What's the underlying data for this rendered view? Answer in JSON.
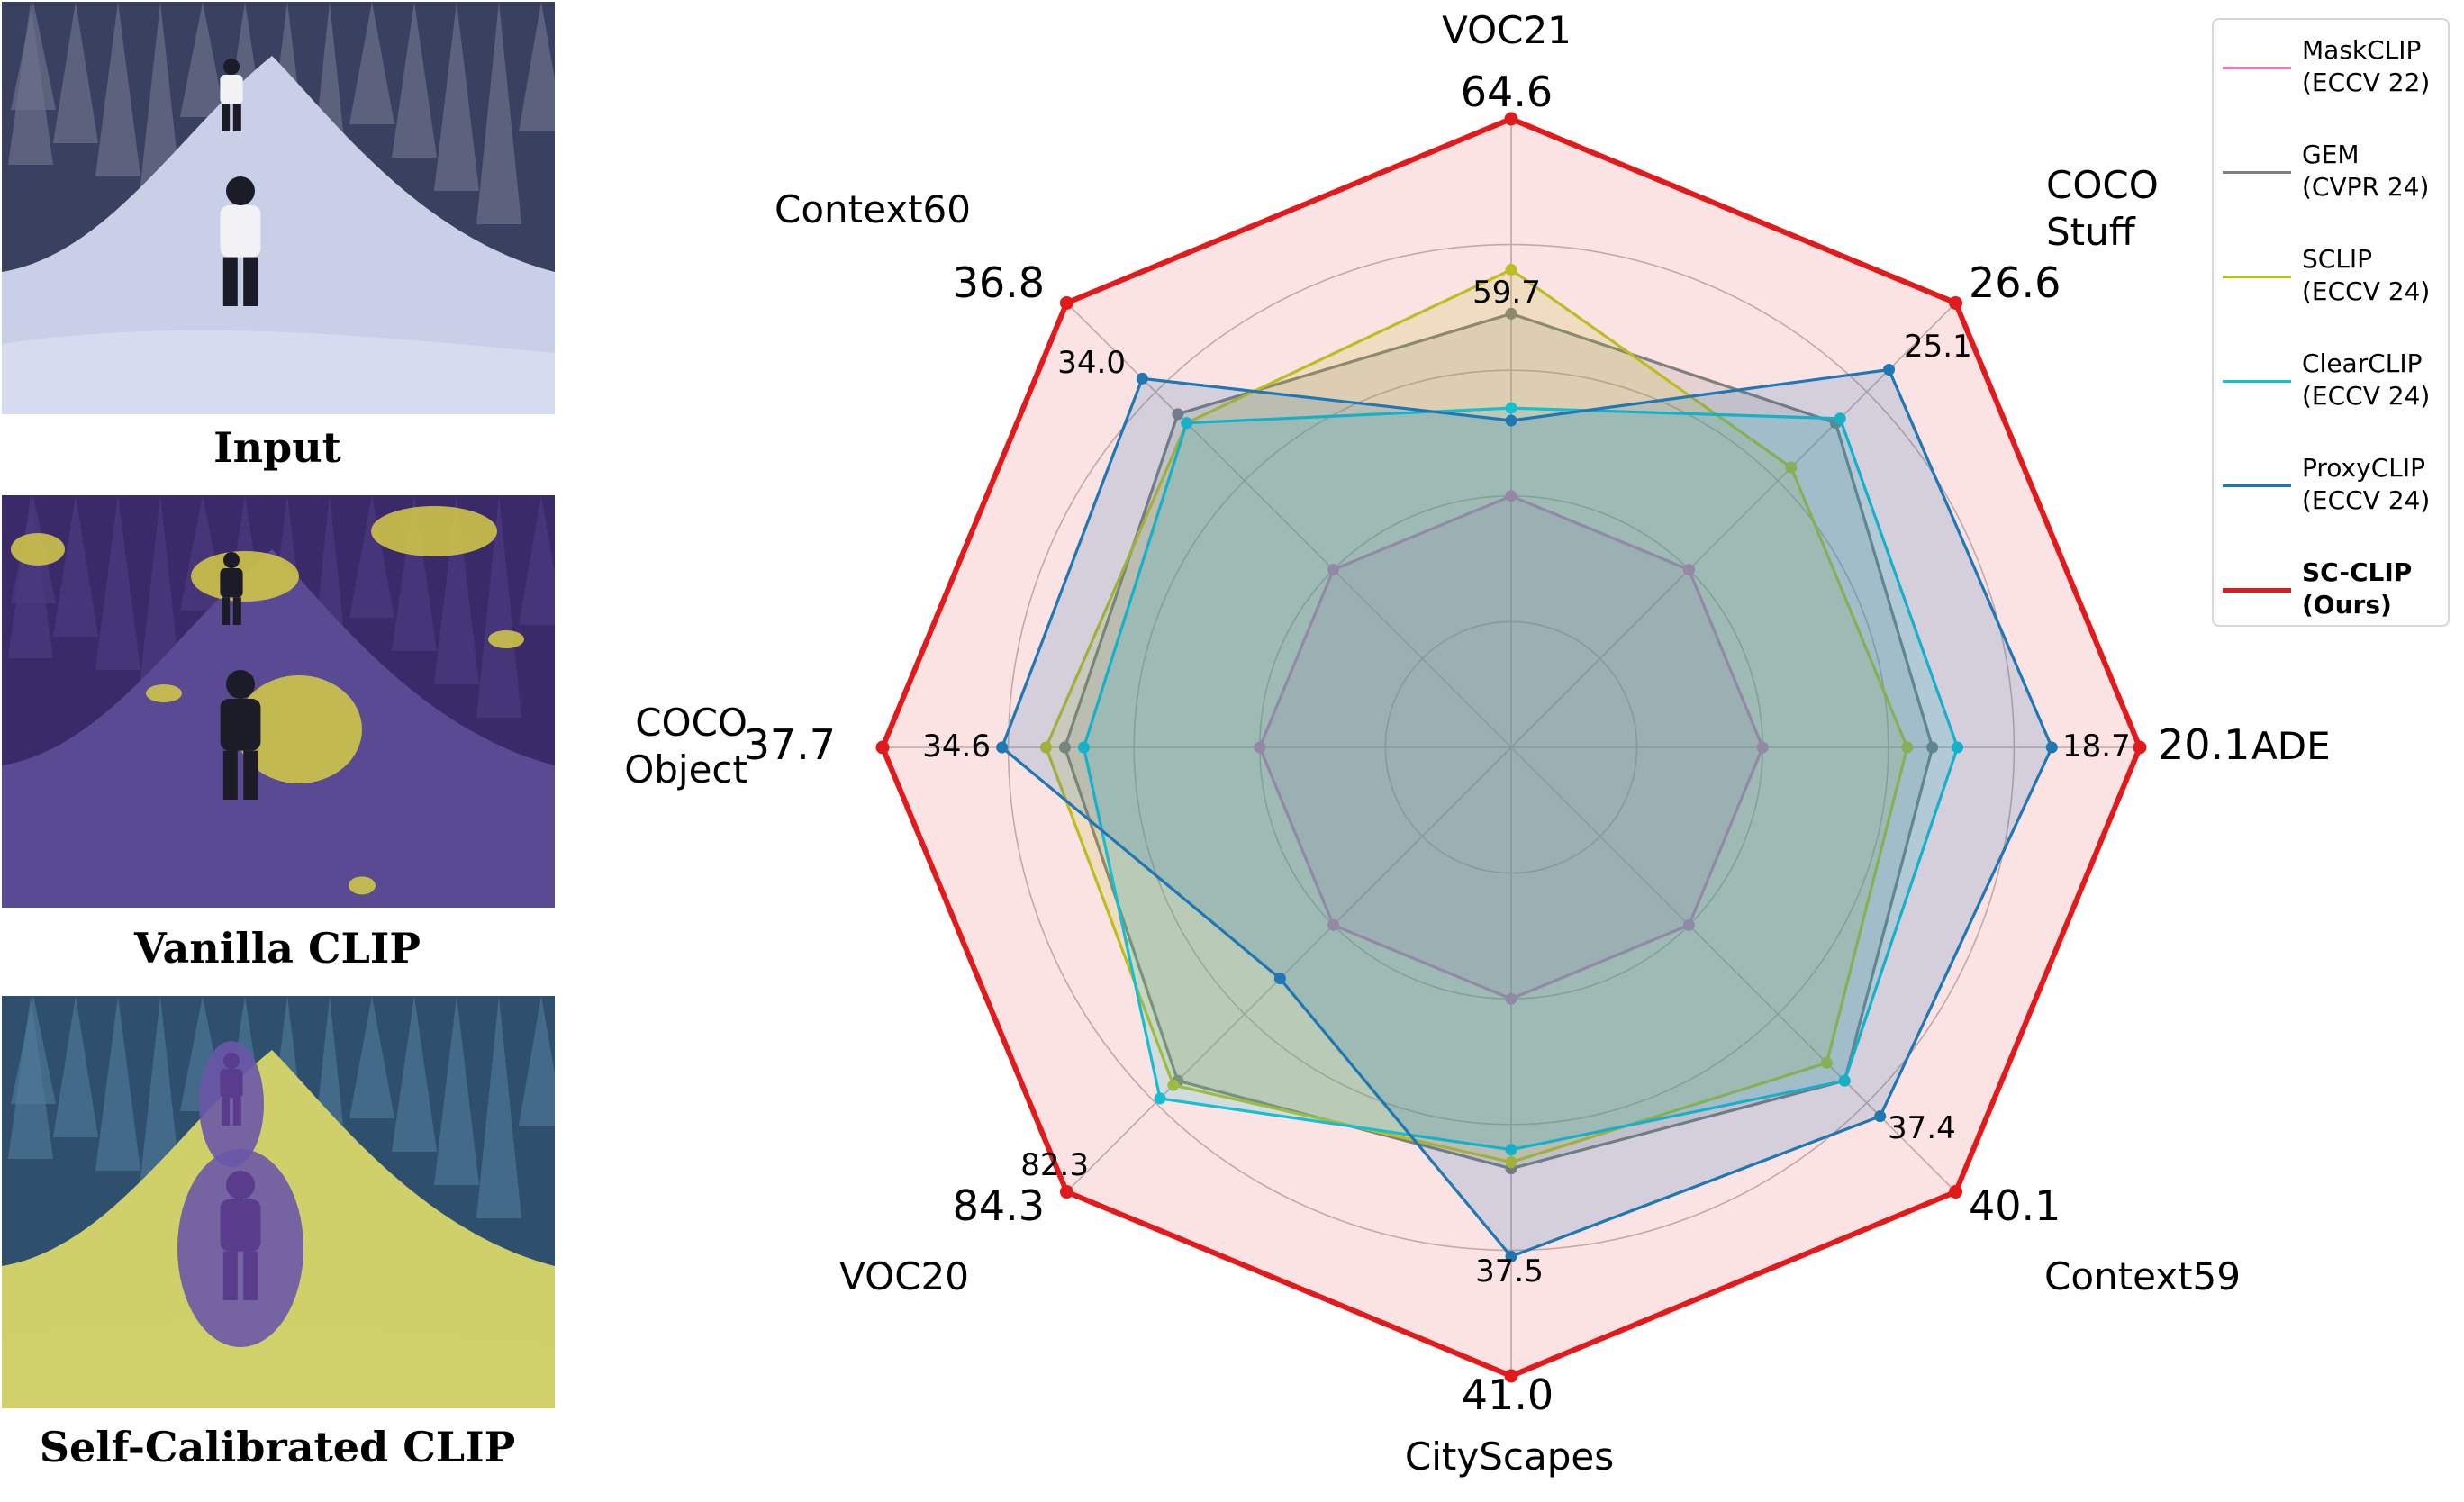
{
  "panels": [
    {
      "caption": "Input",
      "style": "input"
    },
    {
      "caption": "Vanilla CLIP",
      "style": "vanilla"
    },
    {
      "caption": "Self-Calibrated CLIP",
      "style": "calibrated"
    }
  ],
  "chart_data": {
    "type": "radar",
    "axes": [
      {
        "label_lines": [
          "VOC21"
        ],
        "max_label": "64.6",
        "inner_label": "59.7"
      },
      {
        "label_lines": [
          "COCO",
          "Stuff"
        ],
        "max_label": "26.6",
        "inner_label": "25.1"
      },
      {
        "label_lines": [
          "ADE"
        ],
        "max_label": "20.1",
        "inner_label": "18.7"
      },
      {
        "label_lines": [
          "Context59"
        ],
        "max_label": "40.1",
        "inner_label": "37.4"
      },
      {
        "label_lines": [
          "CityScapes"
        ],
        "max_label": "41.0",
        "inner_label": "37.5"
      },
      {
        "label_lines": [
          "VOC20"
        ],
        "max_label": "84.3",
        "inner_label": "82.3"
      },
      {
        "label_lines": [
          "COCO",
          "Object"
        ],
        "max_label": "37.7",
        "inner_label": "34.6"
      },
      {
        "label_lines": [
          "Context60"
        ],
        "max_label": "36.8",
        "inner_label": "34.0"
      }
    ],
    "grid_levels": [
      0.2,
      0.4,
      0.6,
      0.8,
      1.0
    ],
    "series": [
      {
        "name": "MaskCLIP",
        "venue": "(ECCV 22)",
        "color": "#e377c2",
        "values_norm": [
          0.4,
          0.4,
          0.4,
          0.4,
          0.4,
          0.4,
          0.4,
          0.4
        ]
      },
      {
        "name": "GEM",
        "venue": "(CVPR 24)",
        "color": "#7f7f7f",
        "values_norm": [
          0.69,
          0.73,
          0.67,
          0.75,
          0.67,
          0.75,
          0.71,
          0.75
        ]
      },
      {
        "name": "SCLIP",
        "venue": "(ECCV 24)",
        "color": "#bcbd22",
        "values_norm": [
          0.76,
          0.63,
          0.63,
          0.71,
          0.66,
          0.76,
          0.74,
          0.73
        ]
      },
      {
        "name": "ClearCLIP",
        "venue": "(ECCV 24)",
        "color": "#17becf",
        "values_norm": [
          0.54,
          0.74,
          0.71,
          0.75,
          0.64,
          0.79,
          0.68,
          0.73
        ]
      },
      {
        "name": "ProxyCLIP",
        "venue": "(ECCV 24)",
        "color": "#1f77b4",
        "values_norm": [
          0.52,
          0.85,
          0.86,
          0.83,
          0.81,
          0.52,
          0.81,
          0.83
        ]
      },
      {
        "name": "SC-CLIP",
        "venue": "(Ours)",
        "color": "#e31a1c",
        "bold": true,
        "values_norm": [
          1.0,
          1.0,
          1.0,
          1.0,
          1.0,
          1.0,
          1.0,
          1.0
        ]
      }
    ],
    "legend_position": "top-right",
    "grid": true
  }
}
